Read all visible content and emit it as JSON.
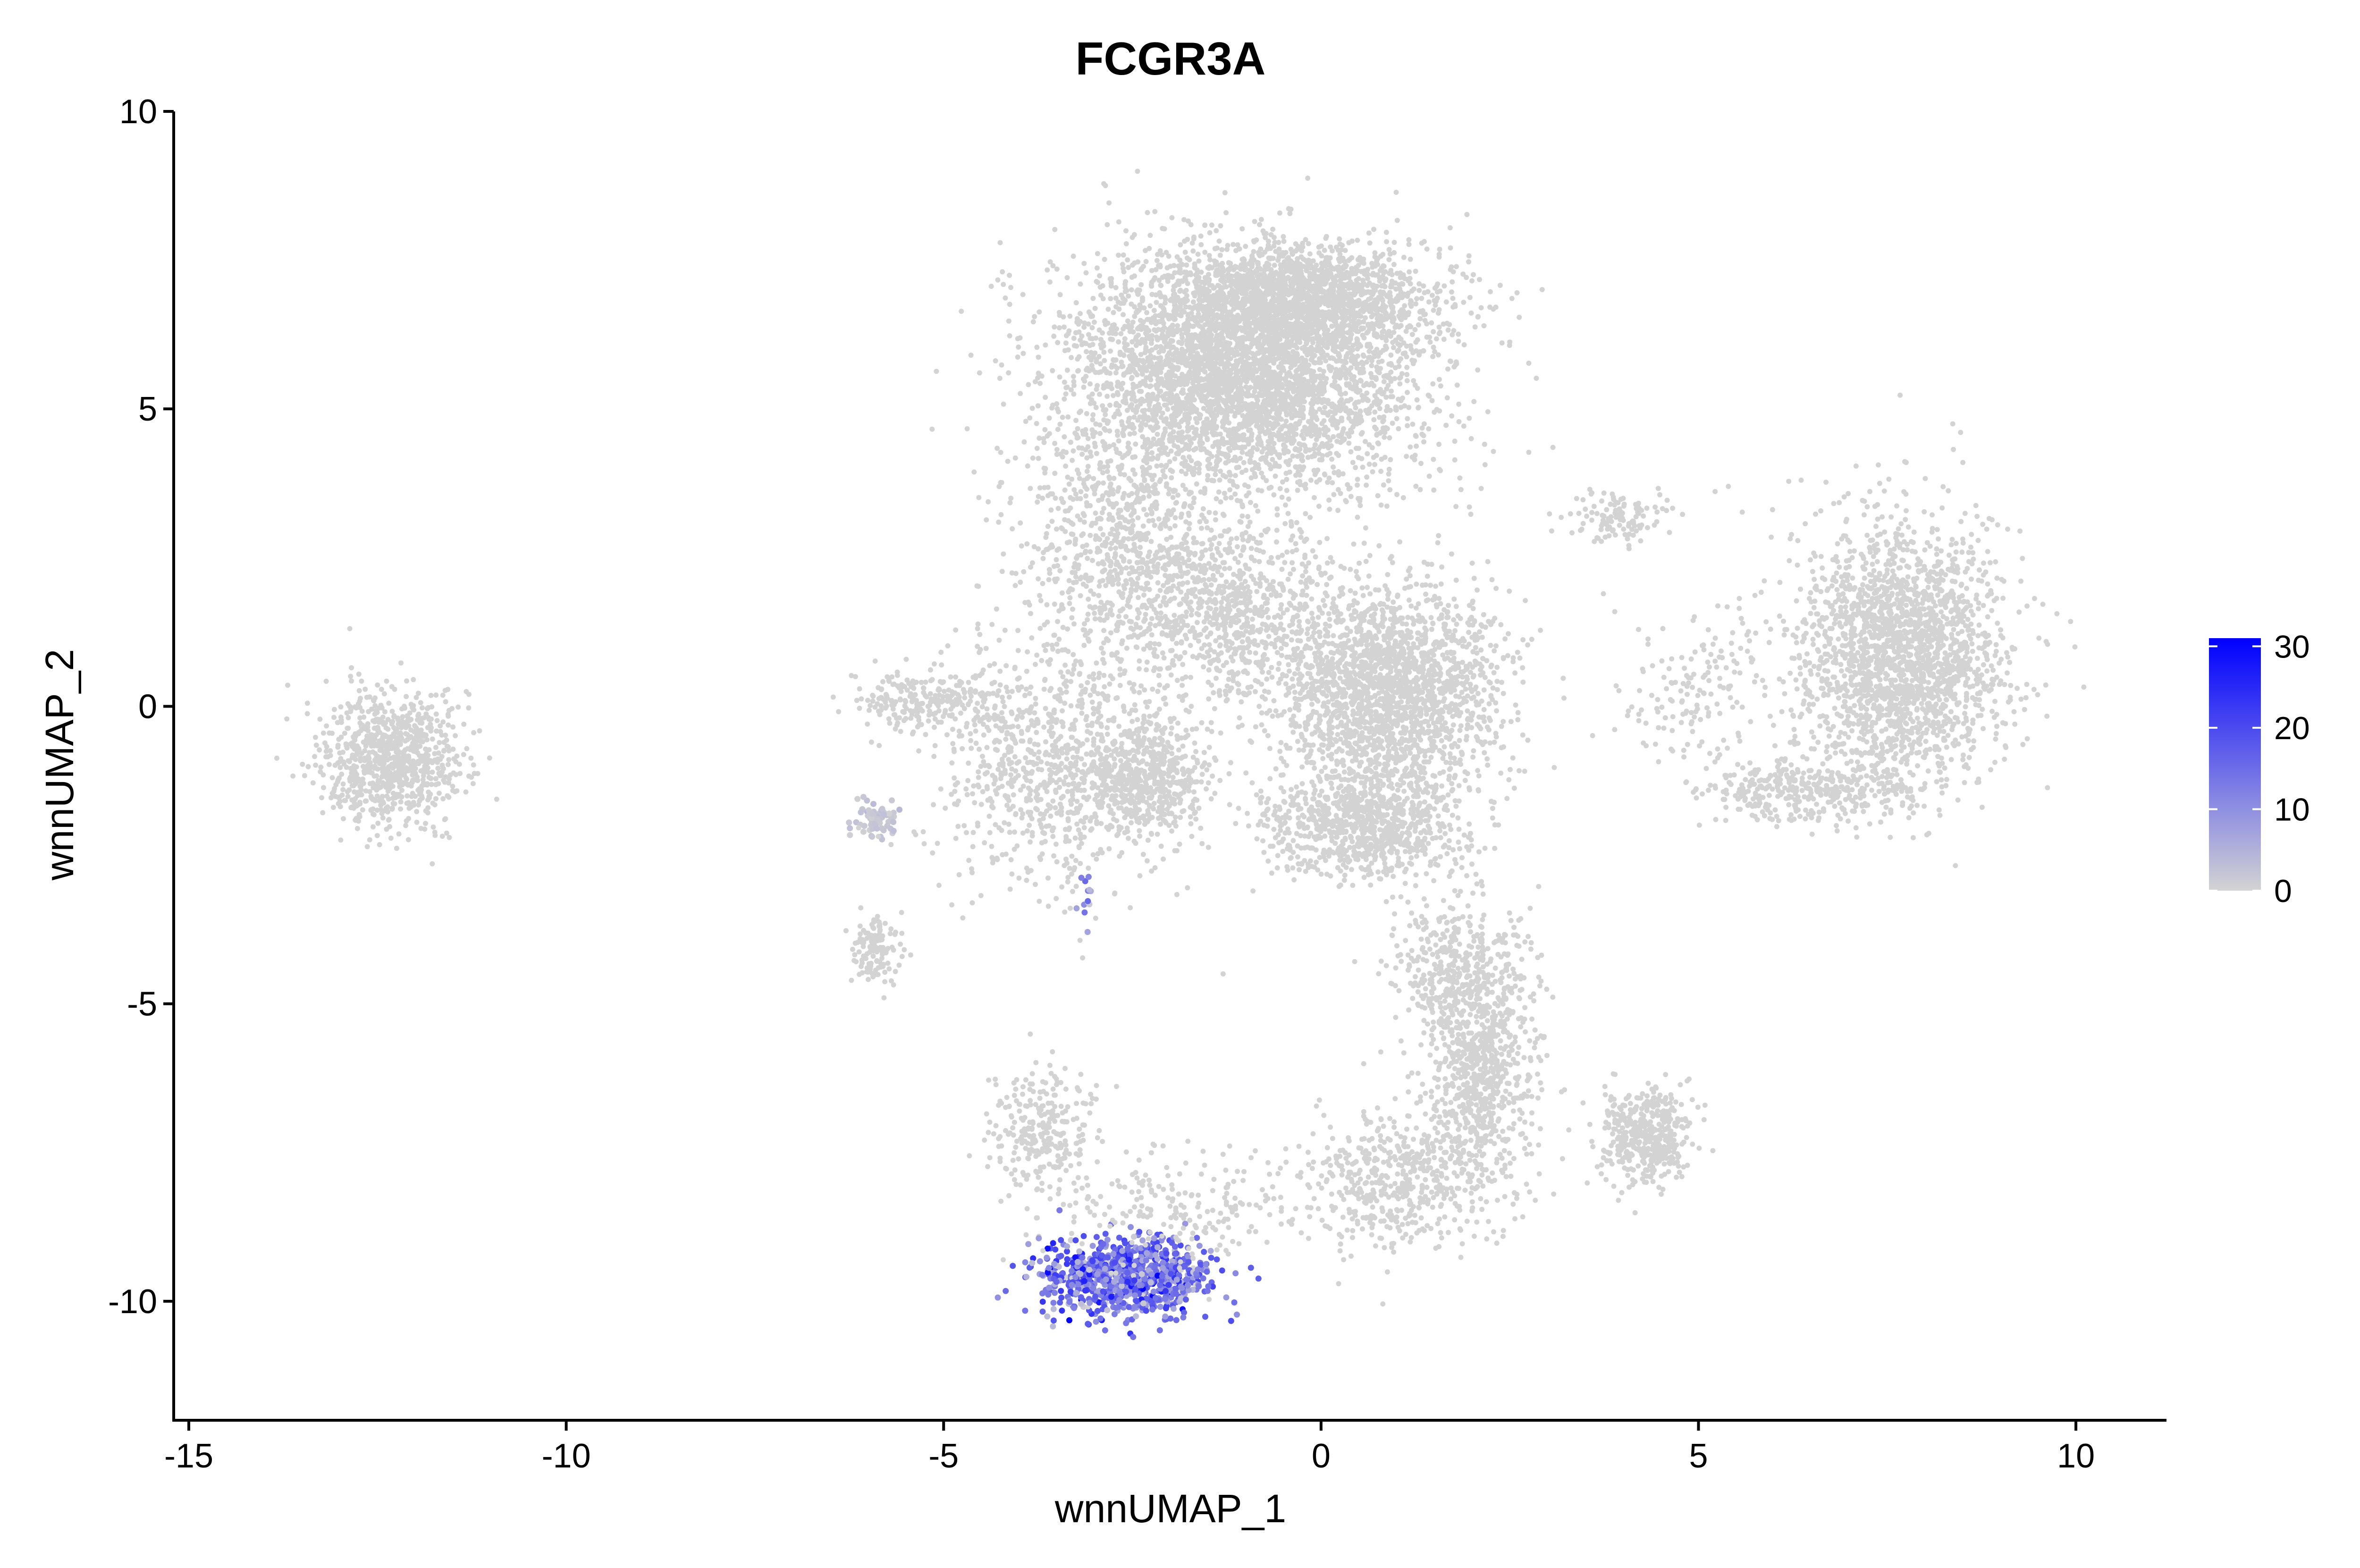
{
  "chart_data": {
    "type": "scatter",
    "title": "FCGR3A",
    "xlabel": "wnnUMAP_1",
    "ylabel": "wnnUMAP_2",
    "xlim": [
      -15.2,
      11.2
    ],
    "ylim": [
      -12.0,
      10.0
    ],
    "x_ticks": [
      -15,
      -10,
      -5,
      0,
      5,
      10
    ],
    "x_tick_labels": [
      "-15",
      "-10",
      "-5",
      "0",
      "5",
      "10"
    ],
    "y_ticks": [
      -10,
      -5,
      0,
      5,
      10
    ],
    "y_tick_labels": [
      "-10",
      "-5",
      "0",
      "5",
      "10"
    ],
    "grid": false,
    "legend": {
      "placement": "right",
      "type": "continuous colorbar",
      "min": 0,
      "max": 31,
      "ticks": [
        0,
        10,
        20,
        30
      ],
      "tick_labels": [
        "0",
        "10",
        "20",
        "30"
      ],
      "low_color": "#d3d3d3",
      "high_color": "#0000ff"
    },
    "point_color_default": "#d3d3d3",
    "clusters": [
      {
        "cx": -1.0,
        "cy": 5.6,
        "sx": 1.6,
        "sy": 1.3,
        "n": 4200,
        "expr": 0
      },
      {
        "cx": -0.2,
        "cy": 6.9,
        "sx": 1.1,
        "sy": 0.55,
        "n": 1400,
        "expr": 0
      },
      {
        "cx": -2.6,
        "cy": 2.6,
        "sx": 0.9,
        "sy": 1.5,
        "n": 900,
        "expr": 0
      },
      {
        "cx": 0.9,
        "cy": 0.3,
        "sx": 1.0,
        "sy": 1.2,
        "n": 2200,
        "expr": 0
      },
      {
        "cx": 0.6,
        "cy": -2.0,
        "sx": 0.9,
        "sy": 0.6,
        "n": 900,
        "expr": 0
      },
      {
        "cx": -1.2,
        "cy": 1.6,
        "sx": 0.8,
        "sy": 1.0,
        "n": 700,
        "expr": 0
      },
      {
        "cx": -3.5,
        "cy": -1.0,
        "sx": 1.0,
        "sy": 1.3,
        "n": 900,
        "expr": 0
      },
      {
        "cx": -2.3,
        "cy": -1.2,
        "sx": 0.5,
        "sy": 0.6,
        "n": 500,
        "expr": 0
      },
      {
        "cx": -5.2,
        "cy": 0.1,
        "sx": 0.7,
        "sy": 0.35,
        "n": 250,
        "expr": 0
      },
      {
        "cx": 2.1,
        "cy": -6.0,
        "sx": 0.5,
        "sy": 1.4,
        "n": 900,
        "expr": 0
      },
      {
        "cx": 1.0,
        "cy": -8.0,
        "sx": 0.9,
        "sy": 0.8,
        "n": 500,
        "expr": 0
      },
      {
        "cx": 1.8,
        "cy": -4.3,
        "sx": 0.6,
        "sy": 0.8,
        "n": 300,
        "expr": 0
      },
      {
        "cx": 4.3,
        "cy": -7.2,
        "sx": 0.4,
        "sy": 0.5,
        "n": 450,
        "expr": 0
      },
      {
        "cx": 7.7,
        "cy": 0.9,
        "sx": 0.9,
        "sy": 1.5,
        "n": 2200,
        "expr": 0
      },
      {
        "cx": 6.4,
        "cy": -1.4,
        "sx": 0.9,
        "sy": 0.35,
        "n": 350,
        "expr": 0
      },
      {
        "cx": 5.0,
        "cy": 0.4,
        "sx": 0.7,
        "sy": 0.9,
        "n": 160,
        "expr": 0
      },
      {
        "cx": 4.0,
        "cy": 3.2,
        "sx": 0.5,
        "sy": 0.3,
        "n": 120,
        "expr": 0
      },
      {
        "cx": -12.3,
        "cy": -0.9,
        "sx": 0.6,
        "sy": 0.75,
        "n": 900,
        "expr": 0
      },
      {
        "cx": -5.9,
        "cy": -4.1,
        "sx": 0.22,
        "sy": 0.35,
        "n": 130,
        "expr": 0
      },
      {
        "cx": -5.9,
        "cy": -1.9,
        "sx": 0.2,
        "sy": 0.25,
        "n": 70,
        "expr": 2
      },
      {
        "cx": -3.7,
        "cy": -7.2,
        "sx": 0.45,
        "sy": 0.75,
        "n": 280,
        "expr": 0
      },
      {
        "cx": -2.6,
        "cy": -9.6,
        "sx": 0.75,
        "sy": 0.45,
        "n": 900,
        "expr": 14
      },
      {
        "cx": -1.8,
        "cy": -8.4,
        "sx": 1.0,
        "sy": 0.6,
        "n": 200,
        "expr": 0
      },
      {
        "cx": -3.1,
        "cy": -3.3,
        "sx": 0.05,
        "sy": 0.35,
        "n": 14,
        "expr": 10
      }
    ]
  }
}
